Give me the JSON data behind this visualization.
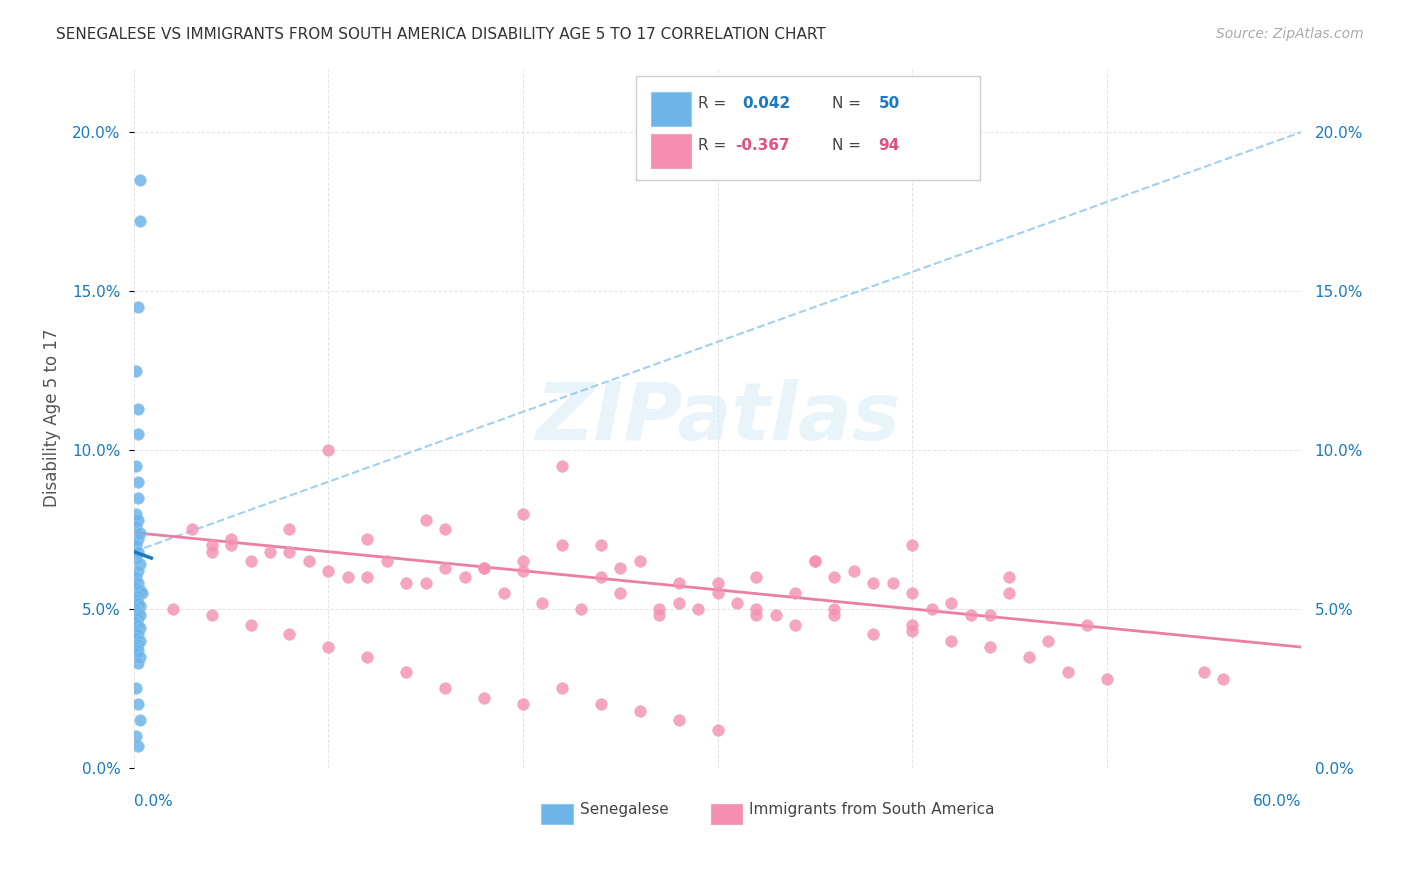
{
  "title": "SENEGALESE VS IMMIGRANTS FROM SOUTH AMERICA DISABILITY AGE 5 TO 17 CORRELATION CHART",
  "source": "Source: ZipAtlas.com",
  "ylabel": "Disability Age 5 to 17",
  "xlim": [
    0.0,
    0.6
  ],
  "ylim": [
    0.0,
    0.22
  ],
  "yticks": [
    0.0,
    0.05,
    0.1,
    0.15,
    0.2
  ],
  "ytick_labels": [
    "0.0%",
    "5.0%",
    "10.0%",
    "15.0%",
    "20.0%"
  ],
  "xticks": [
    0.0,
    0.1,
    0.2,
    0.3,
    0.4,
    0.5,
    0.6
  ],
  "color_blue": "#6eb4e8",
  "color_pink": "#f48fb1",
  "color_blue_text": "#1a7abf",
  "color_pink_text": "#e05080",
  "watermark": "ZIPatlas",
  "r1": "0.042",
  "n1": "50",
  "r2": "-0.367",
  "n2": "94",
  "senegalese_x": [
    0.003,
    0.003,
    0.002,
    0.001,
    0.002,
    0.002,
    0.001,
    0.002,
    0.002,
    0.001,
    0.002,
    0.001,
    0.003,
    0.002,
    0.001,
    0.002,
    0.001,
    0.003,
    0.002,
    0.001,
    0.002,
    0.001,
    0.003,
    0.004,
    0.002,
    0.001,
    0.002,
    0.003,
    0.001,
    0.002,
    0.003,
    0.002,
    0.001,
    0.002,
    0.003,
    0.001,
    0.002,
    0.001,
    0.003,
    0.002,
    0.001,
    0.002,
    0.001,
    0.003,
    0.002,
    0.001,
    0.002,
    0.003,
    0.001,
    0.002
  ],
  "senegalese_y": [
    0.185,
    0.172,
    0.145,
    0.125,
    0.113,
    0.105,
    0.095,
    0.09,
    0.085,
    0.08,
    0.078,
    0.076,
    0.074,
    0.072,
    0.07,
    0.068,
    0.066,
    0.064,
    0.062,
    0.06,
    0.058,
    0.057,
    0.056,
    0.055,
    0.054,
    0.053,
    0.052,
    0.051,
    0.05,
    0.049,
    0.048,
    0.047,
    0.046,
    0.045,
    0.044,
    0.043,
    0.042,
    0.041,
    0.04,
    0.039,
    0.038,
    0.037,
    0.036,
    0.035,
    0.033,
    0.025,
    0.02,
    0.015,
    0.01,
    0.007
  ],
  "south_america_x": [
    0.04,
    0.06,
    0.08,
    0.1,
    0.12,
    0.14,
    0.16,
    0.18,
    0.2,
    0.22,
    0.24,
    0.26,
    0.28,
    0.3,
    0.32,
    0.34,
    0.36,
    0.38,
    0.4,
    0.42,
    0.03,
    0.05,
    0.07,
    0.09,
    0.11,
    0.13,
    0.15,
    0.17,
    0.19,
    0.21,
    0.23,
    0.25,
    0.27,
    0.29,
    0.31,
    0.33,
    0.35,
    0.37,
    0.39,
    0.41,
    0.43,
    0.45,
    0.47,
    0.49,
    0.02,
    0.04,
    0.06,
    0.08,
    0.1,
    0.12,
    0.14,
    0.16,
    0.18,
    0.2,
    0.22,
    0.24,
    0.26,
    0.28,
    0.3,
    0.32,
    0.34,
    0.36,
    0.38,
    0.4,
    0.42,
    0.44,
    0.46,
    0.48,
    0.5,
    0.05,
    0.1,
    0.15,
    0.2,
    0.25,
    0.3,
    0.35,
    0.4,
    0.45,
    0.55,
    0.56,
    0.04,
    0.08,
    0.12,
    0.16,
    0.2,
    0.24,
    0.28,
    0.32,
    0.36,
    0.4,
    0.44,
    0.22,
    0.27,
    0.18
  ],
  "south_america_y": [
    0.07,
    0.065,
    0.068,
    0.062,
    0.06,
    0.058,
    0.075,
    0.063,
    0.08,
    0.095,
    0.07,
    0.065,
    0.058,
    0.055,
    0.06,
    0.055,
    0.06,
    0.058,
    0.055,
    0.052,
    0.075,
    0.07,
    0.068,
    0.065,
    0.06,
    0.065,
    0.058,
    0.06,
    0.055,
    0.052,
    0.05,
    0.055,
    0.048,
    0.05,
    0.052,
    0.048,
    0.065,
    0.062,
    0.058,
    0.05,
    0.048,
    0.055,
    0.04,
    0.045,
    0.05,
    0.048,
    0.045,
    0.042,
    0.038,
    0.035,
    0.03,
    0.025,
    0.022,
    0.02,
    0.025,
    0.02,
    0.018,
    0.015,
    0.012,
    0.05,
    0.045,
    0.048,
    0.042,
    0.043,
    0.04,
    0.038,
    0.035,
    0.03,
    0.028,
    0.072,
    0.1,
    0.078,
    0.062,
    0.063,
    0.058,
    0.065,
    0.07,
    0.06,
    0.03,
    0.028,
    0.068,
    0.075,
    0.072,
    0.063,
    0.065,
    0.06,
    0.052,
    0.048,
    0.05,
    0.045,
    0.048,
    0.07,
    0.05,
    0.063
  ]
}
